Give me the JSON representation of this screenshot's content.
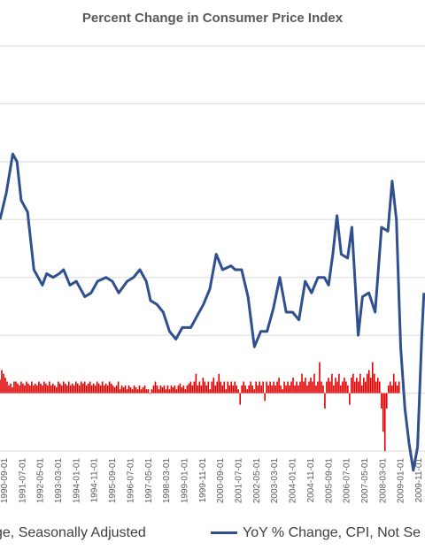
{
  "chart_data": {
    "type": "line",
    "title": "Percent Change in Consumer Price Index",
    "ylim": [
      -1.5,
      9.0
    ],
    "grid": true,
    "x_tick_labels": [
      "1990-09-01",
      "1991-07-01",
      "1992-05-01",
      "1993-03-01",
      "1994-01-01",
      "1994-11-01",
      "1995-09-01",
      "1996-07-01",
      "1997-05-01",
      "1998-03-01",
      "1999-01-01",
      "1999-11-01",
      "2000-09-01",
      "2001-07-01",
      "2002-05-01",
      "2003-03-01",
      "2004-01-01",
      "2004-11-01",
      "2005-09-01",
      "2006-07-01",
      "2007-05-01",
      "2008-03-01",
      "2009-01-01",
      "2009-11-01"
    ],
    "series": [
      {
        "name": "YoY % Change, CPI, Not Se",
        "kind": "line",
        "color": "#2F4F8F",
        "x": [
          1990.0,
          1990.3,
          1990.6,
          1990.8,
          1991.0,
          1991.3,
          1991.6,
          1991.8,
          1992.0,
          1992.2,
          1992.5,
          1992.8,
          1993.0,
          1993.3,
          1993.6,
          1994.0,
          1994.3,
          1994.6,
          1995.0,
          1995.3,
          1995.6,
          1996.0,
          1996.3,
          1996.6,
          1996.9,
          1997.1,
          1997.4,
          1997.7,
          1998.0,
          1998.3,
          1998.6,
          1999.0,
          1999.3,
          1999.6,
          1999.9,
          2000.2,
          2000.5,
          2000.9,
          2001.1,
          2001.4,
          2001.7,
          2002.0,
          2002.3,
          2002.6,
          2002.9,
          2003.2,
          2003.5,
          2003.8,
          2004.1,
          2004.4,
          2004.7,
          2005.0,
          2005.3,
          2005.5,
          2005.7,
          2005.9,
          2006.1,
          2006.4,
          2006.6,
          2006.9,
          2007.1,
          2007.4,
          2007.7,
          2008.0,
          2008.3,
          2008.5,
          2008.7,
          2008.9,
          2009.1,
          2009.3,
          2009.5,
          2009.7,
          2009.9,
          2010.0
        ],
        "values": [
          4.5,
          5.2,
          6.2,
          6.0,
          5.0,
          4.7,
          3.2,
          3.0,
          2.8,
          3.1,
          3.0,
          3.1,
          3.2,
          2.8,
          2.9,
          2.5,
          2.6,
          2.9,
          3.0,
          2.9,
          2.6,
          2.9,
          3.0,
          3.2,
          2.9,
          2.4,
          2.3,
          2.1,
          1.6,
          1.4,
          1.7,
          1.7,
          2.0,
          2.3,
          2.7,
          3.6,
          3.2,
          3.3,
          3.2,
          3.2,
          2.5,
          1.2,
          1.6,
          1.6,
          2.2,
          3.0,
          2.1,
          2.1,
          1.9,
          2.9,
          2.6,
          3.0,
          3.0,
          2.8,
          3.6,
          4.6,
          3.6,
          3.5,
          4.3,
          1.5,
          2.5,
          2.6,
          2.1,
          4.3,
          4.2,
          5.5,
          4.5,
          1.2,
          -0.4,
          -1.3,
          -2.0,
          -1.4,
          1.5,
          2.6
        ]
      },
      {
        "name": "ge, Seasonally Adjusted",
        "kind": "bar",
        "color": "#E00000",
        "x_start": 1990.0,
        "x_step": 0.0833,
        "values": [
          0.35,
          0.6,
          0.5,
          0.4,
          0.3,
          0.2,
          0.25,
          0.15,
          0.3,
          0.3,
          0.25,
          0.2,
          0.3,
          0.25,
          0.2,
          0.3,
          0.25,
          0.2,
          0.3,
          0.2,
          0.25,
          0.2,
          0.3,
          0.25,
          0.2,
          0.3,
          0.25,
          0.2,
          0.3,
          0.2,
          0.25,
          0.2,
          0.15,
          0.3,
          0.25,
          0.2,
          0.3,
          0.25,
          0.2,
          0.3,
          0.2,
          0.25,
          0.2,
          0.3,
          0.25,
          0.2,
          0.3,
          0.25,
          0.3,
          0.2,
          0.25,
          0.3,
          0.2,
          0.25,
          0.2,
          0.3,
          0.25,
          0.2,
          0.3,
          0.2,
          0.25,
          0.2,
          0.3,
          0.25,
          0.2,
          0.15,
          0.2,
          0.3,
          0.1,
          0.2,
          0.15,
          0.2,
          0.1,
          0.2,
          0.15,
          0.1,
          0.2,
          0.15,
          0.1,
          0.2,
          0.1,
          0.15,
          0.2,
          0.1,
          0.1,
          0.0,
          0.1,
          0.2,
          0.3,
          0.2,
          0.1,
          0.2,
          0.15,
          0.2,
          0.1,
          0.2,
          0.1,
          0.2,
          0.15,
          0.2,
          0.1,
          0.2,
          0.25,
          0.15,
          0.2,
          0.1,
          0.2,
          0.25,
          0.3,
          0.2,
          0.3,
          0.5,
          0.2,
          0.3,
          0.2,
          0.4,
          0.3,
          0.2,
          0.3,
          0.1,
          0.3,
          0.4,
          0.2,
          0.3,
          0.5,
          0.3,
          0.2,
          0.3,
          0.1,
          0.3,
          0.2,
          0.3,
          0.2,
          0.3,
          0.2,
          0.1,
          -0.3,
          0.2,
          0.3,
          0.2,
          0.1,
          0.2,
          0.3,
          0.2,
          0.1,
          0.3,
          0.2,
          0.3,
          0.2,
          0.3,
          -0.2,
          0.3,
          0.2,
          0.3,
          0.2,
          0.3,
          0.2,
          0.3,
          0.4,
          0.2,
          0.1,
          0.3,
          0.2,
          0.3,
          0.2,
          0.3,
          0.4,
          0.2,
          0.3,
          0.2,
          0.3,
          0.5,
          0.3,
          0.4,
          0.2,
          0.3,
          0.4,
          0.3,
          0.5,
          0.2,
          0.3,
          0.8,
          0.3,
          0.2,
          -0.4,
          0.3,
          0.4,
          0.3,
          0.5,
          0.2,
          0.4,
          0.3,
          0.5,
          0.2,
          0.3,
          0.4,
          0.3,
          0.2,
          -0.3,
          0.4,
          0.5,
          0.3,
          0.4,
          0.3,
          0.5,
          0.2,
          0.4,
          0.3,
          0.5,
          0.6,
          0.4,
          0.8,
          0.5,
          0.3,
          0.4,
          0.3,
          -0.4,
          -1.0,
          -1.5,
          -0.4,
          0.2,
          0.3,
          0.2,
          0.5,
          0.3,
          0.2,
          0.3
        ]
      }
    ],
    "legend": {
      "position": "bottom",
      "left_label": "ge, Seasonally Adjusted",
      "right_label": "YoY % Change, CPI, Not Se"
    }
  }
}
